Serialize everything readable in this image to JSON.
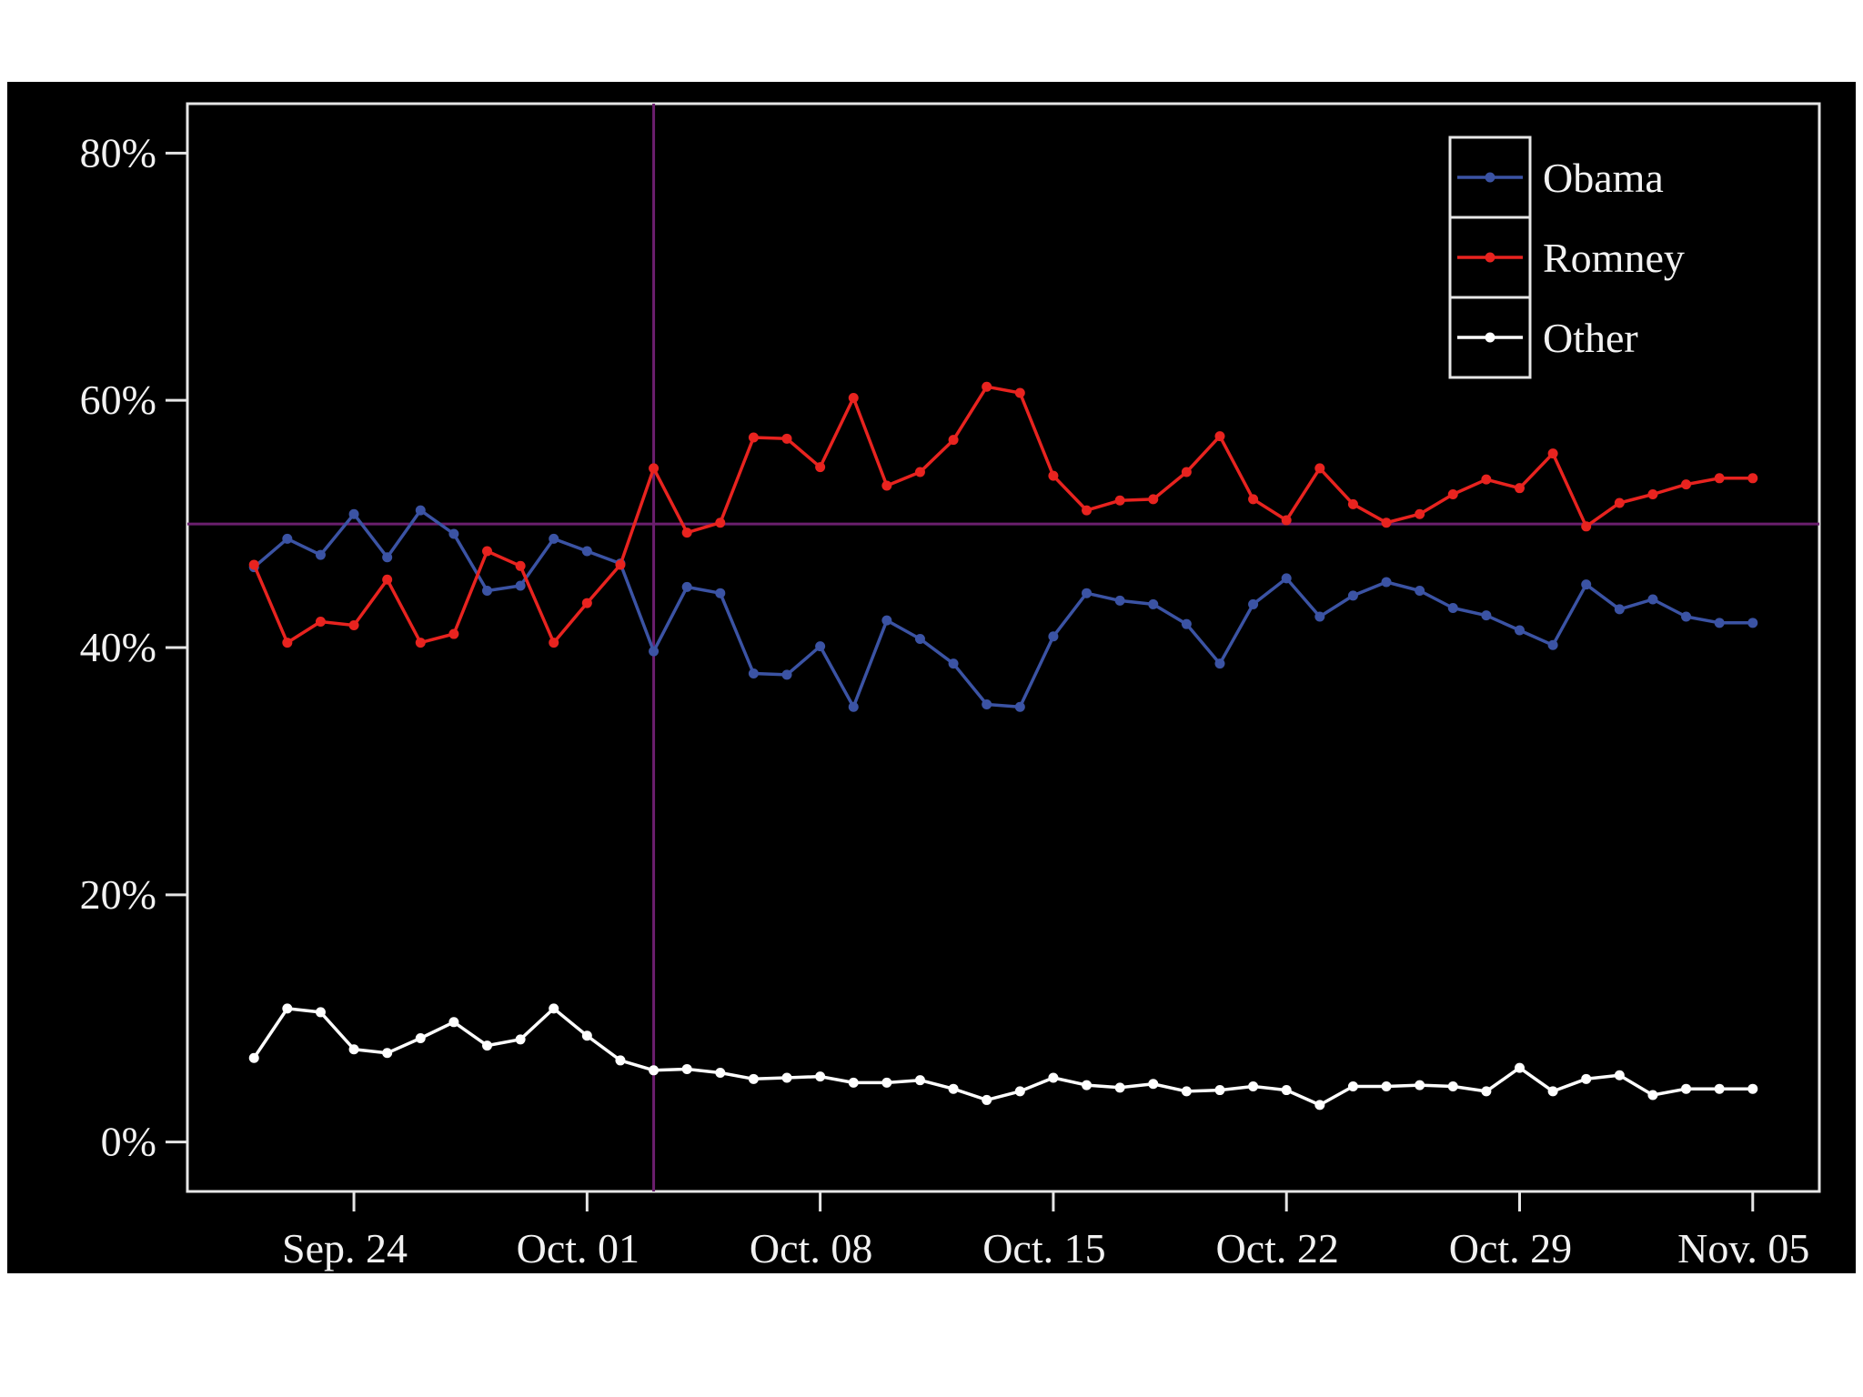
{
  "chart_data": {
    "type": "line",
    "title": "",
    "xlabel": "",
    "ylabel": "",
    "x_tick_labels": [
      "Sep. 24",
      "Oct. 01",
      "Oct. 08",
      "Oct. 15",
      "Oct. 22",
      "Oct. 29",
      "Nov. 05"
    ],
    "x_tick_dates": [
      "2012-09-24",
      "2012-10-01",
      "2012-10-08",
      "2012-10-15",
      "2012-10-22",
      "2012-10-29",
      "2012-11-05"
    ],
    "x_range": [
      "2012-09-19",
      "2012-11-07"
    ],
    "y_tick_labels": [
      "0%",
      "20%",
      "40%",
      "60%",
      "80%"
    ],
    "y_ticks": [
      0,
      20,
      40,
      60,
      80
    ],
    "ylim": [
      -4,
      84
    ],
    "reference_lines": {
      "vertical_date": "2012-10-03",
      "horizontal_value": 50,
      "color": "#6b1f6e"
    },
    "legend_position": "top-right",
    "x": [
      "2012-09-21",
      "2012-09-22",
      "2012-09-23",
      "2012-09-24",
      "2012-09-25",
      "2012-09-26",
      "2012-09-27",
      "2012-09-28",
      "2012-09-29",
      "2012-09-30",
      "2012-10-01",
      "2012-10-02",
      "2012-10-03",
      "2012-10-04",
      "2012-10-05",
      "2012-10-06",
      "2012-10-07",
      "2012-10-08",
      "2012-10-09",
      "2012-10-10",
      "2012-10-11",
      "2012-10-12",
      "2012-10-13",
      "2012-10-14",
      "2012-10-15",
      "2012-10-16",
      "2012-10-17",
      "2012-10-18",
      "2012-10-19",
      "2012-10-20",
      "2012-10-21",
      "2012-10-22",
      "2012-10-23",
      "2012-10-24",
      "2012-10-25",
      "2012-10-26",
      "2012-10-27",
      "2012-10-28",
      "2012-10-29",
      "2012-10-30",
      "2012-10-31",
      "2012-11-01",
      "2012-11-02",
      "2012-11-03",
      "2012-11-04",
      "2012-11-05"
    ],
    "series": [
      {
        "name": "Obama",
        "color": "#3b53a4",
        "values": [
          46.5,
          48.8,
          47.5,
          50.8,
          47.3,
          51.1,
          49.2,
          44.6,
          45.0,
          48.8,
          47.8,
          46.8,
          39.7,
          44.9,
          44.4,
          37.9,
          37.8,
          40.1,
          35.2,
          42.2,
          40.7,
          38.7,
          35.4,
          35.2,
          40.9,
          44.4,
          43.8,
          43.5,
          41.9,
          38.7,
          43.5,
          45.6,
          42.5,
          44.2,
          45.3,
          44.6,
          43.2,
          42.6,
          41.4,
          40.2,
          45.1,
          43.1,
          43.9,
          42.5,
          42.0,
          42.0
        ],
        "aligned_to": "x"
      },
      {
        "name": "Romney",
        "color": "#e8231f",
        "values": [
          46.7,
          40.4,
          42.1,
          41.8,
          45.5,
          40.4,
          41.1,
          47.8,
          46.6,
          40.4,
          43.6,
          46.7,
          54.5,
          49.3,
          50.1,
          57.0,
          56.9,
          54.6,
          60.2,
          53.1,
          54.2,
          56.8,
          61.1,
          60.6,
          53.9,
          51.1,
          51.9,
          52.0,
          54.2,
          57.1,
          52.0,
          50.3,
          54.5,
          51.6,
          50.1,
          50.8,
          52.4,
          53.6,
          52.9,
          55.7,
          49.8,
          51.7,
          52.4,
          53.2,
          53.7,
          53.7
        ],
        "aligned_to": "x"
      },
      {
        "name": "Other",
        "color": "#ffffff",
        "values": [
          6.8,
          10.8,
          10.5,
          7.5,
          7.2,
          8.4,
          9.7,
          7.8,
          8.3,
          10.8,
          8.6,
          6.6,
          5.8,
          5.9,
          5.6,
          5.1,
          5.2,
          5.3,
          4.8,
          4.8,
          5.0,
          4.3,
          3.4,
          4.1,
          5.2,
          4.6,
          4.4,
          4.7,
          4.1,
          4.2,
          4.5,
          4.2,
          3.0,
          4.5,
          4.5,
          4.6,
          4.5,
          4.1,
          6.0,
          4.1,
          5.1,
          5.4,
          3.8,
          4.3,
          4.3,
          4.3
        ],
        "aligned_to": "x"
      }
    ],
    "grid": false
  }
}
